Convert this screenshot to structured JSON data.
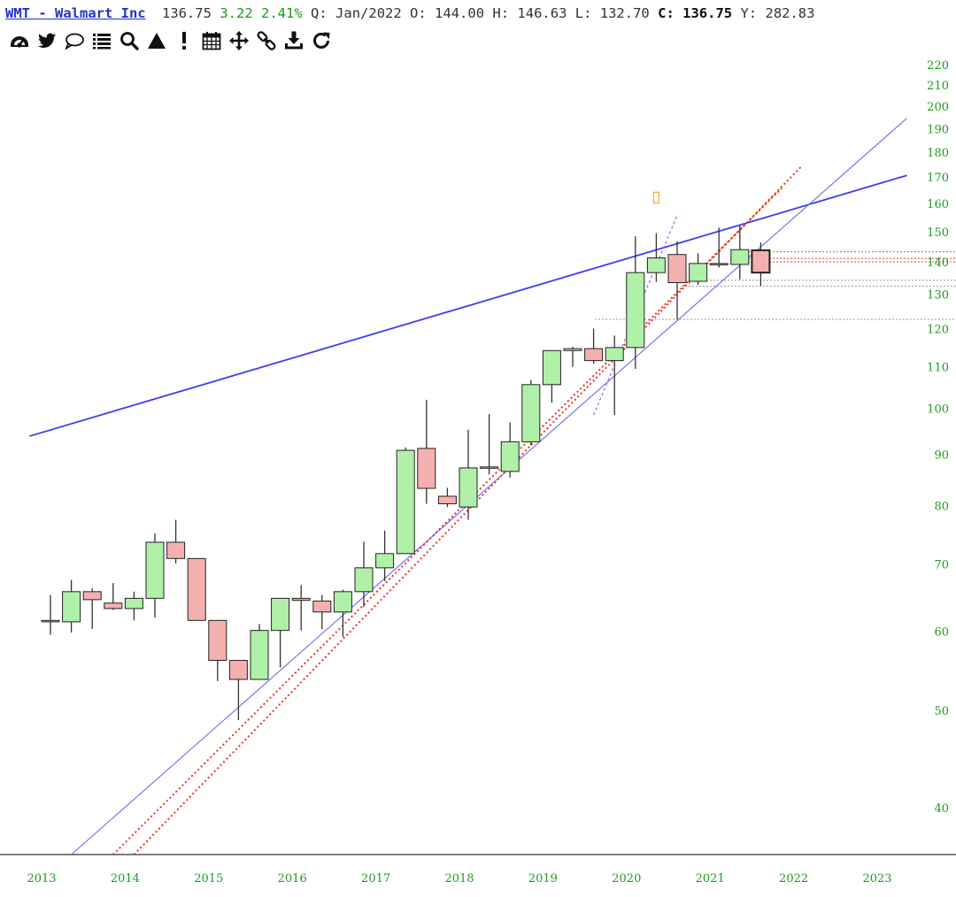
{
  "header": {
    "symbol": "WMT - Walmart Inc",
    "last": "136.75",
    "change": "3.22",
    "change_pct": "2.41%",
    "period_label": "Q:",
    "period": "Jan/2022",
    "open_label": "O:",
    "open": "144.00",
    "high_label": "H:",
    "high": "146.63",
    "low_label": "L:",
    "low": "132.70",
    "close_label": "C:",
    "close": "136.75",
    "y_label": "Y:",
    "y_value": "282.83"
  },
  "toolbar": [
    {
      "name": "dashboard-icon"
    },
    {
      "name": "twitter-icon"
    },
    {
      "name": "comment-icon"
    },
    {
      "name": "list-icon"
    },
    {
      "name": "search-icon"
    },
    {
      "name": "triangle-icon"
    },
    {
      "name": "exclamation-icon"
    },
    {
      "name": "calendar-icon"
    },
    {
      "name": "move-icon"
    },
    {
      "name": "link-icon"
    },
    {
      "name": "download-icon"
    },
    {
      "name": "refresh-icon"
    }
  ],
  "colors": {
    "up_candle": "#b0f0a8",
    "down_candle": "#f4b0b0",
    "trendline_blue": "#3d3df0",
    "trendline_light_blue": "#6a6af5",
    "channel_red": "#ee3322",
    "axis_text": "#1f9a1f",
    "header_symbol": "#2233cc"
  },
  "chart_data": {
    "type": "candlestick",
    "period": "quarterly",
    "y_scale": "log",
    "ylim": [
      36,
      225
    ],
    "y_ticks": [
      40,
      50,
      60,
      70,
      80,
      90,
      100,
      110,
      120,
      130,
      140,
      150,
      160,
      170,
      180,
      190,
      200,
      210,
      220
    ],
    "x_ticks": [
      "2013",
      "2014",
      "2015",
      "2016",
      "2017",
      "2018",
      "2019",
      "2020",
      "2021",
      "2022",
      "2023"
    ],
    "candles": [
      {
        "period": "2013 Q1",
        "open": 61.6,
        "high": 65.3,
        "low": 59.6,
        "close": 61.4
      },
      {
        "period": "2013 Q2",
        "open": 61.4,
        "high": 67.6,
        "low": 59.9,
        "close": 65.8
      },
      {
        "period": "2013 Q3",
        "open": 65.8,
        "high": 66.3,
        "low": 60.4,
        "close": 64.6
      },
      {
        "period": "2013 Q4",
        "open": 64.1,
        "high": 67.1,
        "low": 63.1,
        "close": 63.3
      },
      {
        "period": "2014 Q1",
        "open": 63.3,
        "high": 65.8,
        "low": 61.6,
        "close": 64.8
      },
      {
        "period": "2014 Q2",
        "open": 64.8,
        "high": 75.2,
        "low": 62.0,
        "close": 73.7
      },
      {
        "period": "2014 Q3",
        "open": 73.7,
        "high": 77.6,
        "low": 70.2,
        "close": 71.0
      },
      {
        "period": "2014 Q4",
        "open": 71.0,
        "high": 71.0,
        "low": 61.6,
        "close": 61.6
      },
      {
        "period": "2015 Q1",
        "open": 61.6,
        "high": 61.6,
        "low": 53.6,
        "close": 56.2
      },
      {
        "period": "2015 Q2",
        "open": 56.2,
        "high": 56.2,
        "low": 49.0,
        "close": 53.8
      },
      {
        "period": "2015 Q3",
        "open": 53.8,
        "high": 61.1,
        "low": 53.8,
        "close": 60.2
      },
      {
        "period": "2015 Q4",
        "open": 60.2,
        "high": 64.8,
        "low": 55.3,
        "close": 64.8
      },
      {
        "period": "2016 Q1",
        "open": 64.8,
        "high": 66.8,
        "low": 60.2,
        "close": 64.5
      },
      {
        "period": "2016 Q2",
        "open": 64.4,
        "high": 65.3,
        "low": 60.4,
        "close": 62.8
      },
      {
        "period": "2016 Q3",
        "open": 62.8,
        "high": 66.1,
        "low": 59.3,
        "close": 65.8
      },
      {
        "period": "2016 Q4",
        "open": 65.8,
        "high": 73.8,
        "low": 63.5,
        "close": 69.5
      },
      {
        "period": "2017 Q1",
        "open": 69.5,
        "high": 75.7,
        "low": 67.4,
        "close": 71.8
      },
      {
        "period": "2017 Q2",
        "open": 71.8,
        "high": 91.6,
        "low": 71.8,
        "close": 91.0
      },
      {
        "period": "2017 Q3",
        "open": 91.4,
        "high": 102.2,
        "low": 80.5,
        "close": 83.4
      },
      {
        "period": "2017 Q4",
        "open": 81.9,
        "high": 83.5,
        "low": 79.9,
        "close": 80.5
      },
      {
        "period": "2018 Q1",
        "open": 79.9,
        "high": 95.4,
        "low": 77.6,
        "close": 87.4
      },
      {
        "period": "2018 Q2",
        "open": 87.4,
        "high": 98.9,
        "low": 86.1,
        "close": 87.6
      },
      {
        "period": "2018 Q3",
        "open": 86.7,
        "high": 97.0,
        "low": 85.5,
        "close": 92.8
      },
      {
        "period": "2018 Q4",
        "open": 92.8,
        "high": 106.9,
        "low": 92.0,
        "close": 105.8
      },
      {
        "period": "2019 Q1",
        "open": 105.8,
        "high": 114.4,
        "low": 101.5,
        "close": 114.4
      },
      {
        "period": "2019 Q2",
        "open": 114.4,
        "high": 115.4,
        "low": 110.2,
        "close": 114.9
      },
      {
        "period": "2019 Q3",
        "open": 114.9,
        "high": 120.3,
        "low": 111.0,
        "close": 111.8
      },
      {
        "period": "2019 Q4",
        "open": 111.8,
        "high": 118.4,
        "low": 98.7,
        "close": 115.2
      },
      {
        "period": "2020 Q1",
        "open": 115.2,
        "high": 148.7,
        "low": 109.7,
        "close": 136.8
      },
      {
        "period": "2020 Q2",
        "open": 136.8,
        "high": 149.8,
        "low": 133.9,
        "close": 141.5
      },
      {
        "period": "2020 Q3",
        "open": 142.6,
        "high": 147.0,
        "low": 122.9,
        "close": 133.7
      },
      {
        "period": "2020 Q4",
        "open": 134.1,
        "high": 143.0,
        "low": 133.0,
        "close": 139.7
      },
      {
        "period": "2021 Q1",
        "open": 139.7,
        "high": 151.7,
        "low": 138.4,
        "close": 139.4
      },
      {
        "period": "2021 Q2",
        "open": 139.4,
        "high": 152.3,
        "low": 134.7,
        "close": 144.2
      },
      {
        "period": "2021 Q3",
        "open": 144.0,
        "high": 146.6,
        "low": 132.7,
        "close": 136.8
      }
    ],
    "annotations": [
      {
        "kind": "trendline",
        "style": "solid-blue-thick",
        "from": {
          "period": "2012 Q4",
          "price": 94.0
        },
        "to": {
          "period": "2023 Q2",
          "price": 171.0
        }
      },
      {
        "kind": "trendline",
        "style": "thin-blue",
        "from": {
          "period": "2013 Q2",
          "price": 36.0
        },
        "to": {
          "period": "2023 Q2",
          "price": 195.0
        }
      },
      {
        "kind": "trendline",
        "style": "dotted-red",
        "from": {
          "period": "2013 Q4",
          "price": 36.0
        },
        "to": {
          "period": "2021 Q4",
          "price": 166.0
        }
      },
      {
        "kind": "trendline",
        "style": "dotted-red",
        "from": {
          "period": "2014 Q1",
          "price": 36.0
        },
        "to": {
          "period": "2022 Q1",
          "price": 175.0
        }
      },
      {
        "kind": "trendline",
        "style": "dotted-purple",
        "from": {
          "period": "2019 Q3",
          "price": 98.7
        },
        "to": {
          "period": "2020 Q3",
          "price": 156.0
        }
      },
      {
        "kind": "level",
        "style": "dotted-green",
        "price": 143.5
      },
      {
        "kind": "level",
        "style": "dotted-red",
        "price": 141.3
      },
      {
        "kind": "level",
        "style": "dotted-red",
        "price": 140.2
      },
      {
        "kind": "level",
        "style": "dotted-gray",
        "price": 134.4
      },
      {
        "kind": "level",
        "style": "dotted-gray",
        "price": 132.6
      },
      {
        "kind": "level",
        "style": "dotted-gray",
        "price": 122.9
      },
      {
        "kind": "marker",
        "style": "orange-outline",
        "period": "2020 Q2",
        "price": 162.5
      }
    ]
  }
}
